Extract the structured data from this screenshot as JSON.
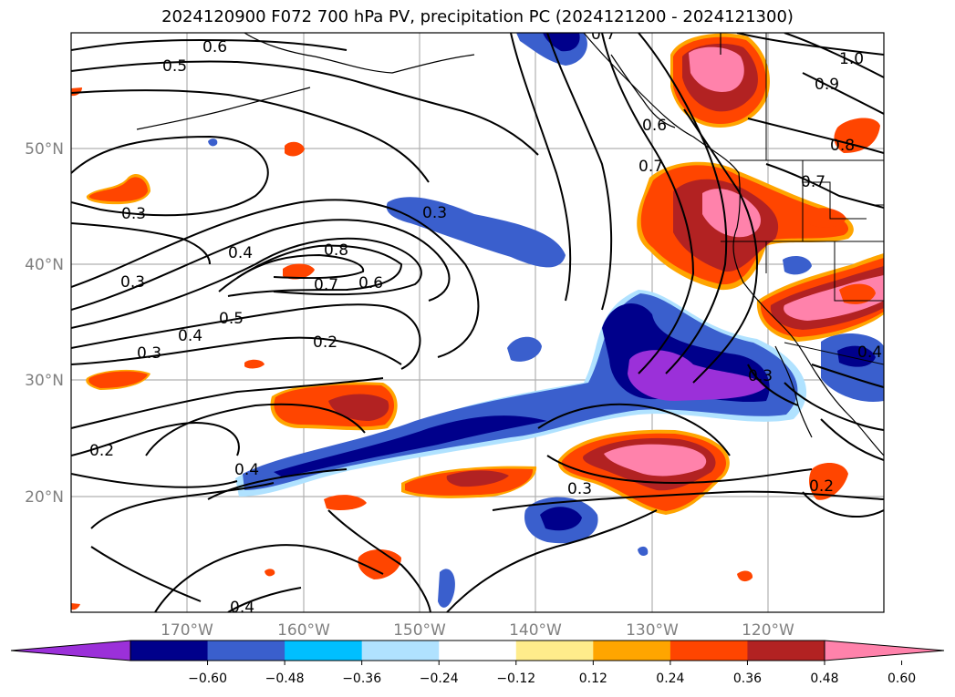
{
  "title": "2024120900 F072 700 hPa PV, precipitation PC (2024121200 - 2024121300)",
  "x_ticks": [
    "170°W",
    "160°W",
    "150°W",
    "140°W",
    "130°W",
    "120°W"
  ],
  "y_ticks": [
    "50°N",
    "40°N",
    "30°N",
    "20°N"
  ],
  "colorbar": {
    "ticks": [
      "−0.60",
      "−0.48",
      "−0.36",
      "−0.24",
      "−0.12",
      "0.12",
      "0.24",
      "0.36",
      "0.48",
      "0.60"
    ],
    "colors": [
      "#9b30d9",
      "#00008b",
      "#3a5fcd",
      "#00bfff",
      "#b0e2ff",
      "#ffffff",
      "#ffec8b",
      "#ffa500",
      "#ff4500",
      "#b22222",
      "#ff82ab"
    ]
  },
  "contour_labels": {
    "l1": "0.6",
    "l2": "0.5",
    "l3": "0.3",
    "l4": "0.3",
    "l5": "0.4",
    "l6": "0.8",
    "l7": "0.7",
    "l8": "0.6",
    "l9": "0.5",
    "l10": "0.4",
    "l11": "0.3",
    "l12": "0.2",
    "l13": "0.3",
    "l14": "0.2",
    "l15": "0.4",
    "l16": "0.3",
    "l17": "0.2",
    "l18": "0.4",
    "l19": "0.6",
    "l20": "0.7",
    "l21": "0.7",
    "l22": "1.0",
    "l23": "0.9",
    "l24": "0.8",
    "l25": "0.7",
    "l26": "0.3",
    "l27": "0.4"
  }
}
